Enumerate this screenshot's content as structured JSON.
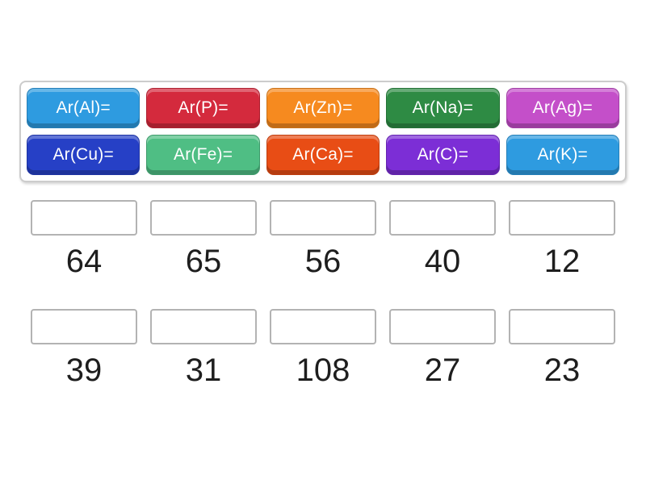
{
  "tiles": [
    {
      "label": "Ar(Al)=",
      "color": "#2E9BE0"
    },
    {
      "label": "Ar(P)=",
      "color": "#D42A3D"
    },
    {
      "label": "Ar(Zn)=",
      "color": "#F68A1F"
    },
    {
      "label": "Ar(Na)=",
      "color": "#2E8B44"
    },
    {
      "label": "Ar(Ag)=",
      "color": "#C44FC9"
    },
    {
      "label": "Ar(Cu)=",
      "color": "#2640C6"
    },
    {
      "label": "Ar(Fe)=",
      "color": "#4FBE84"
    },
    {
      "label": "Ar(Ca)=",
      "color": "#E84D15"
    },
    {
      "label": "Ar(C)=",
      "color": "#7C2ED6"
    },
    {
      "label": "Ar(K)=",
      "color": "#2E9BE0"
    }
  ],
  "answers": {
    "row1": [
      "64",
      "65",
      "56",
      "40",
      "12"
    ],
    "row2": [
      "39",
      "31",
      "108",
      "27",
      "23"
    ]
  }
}
